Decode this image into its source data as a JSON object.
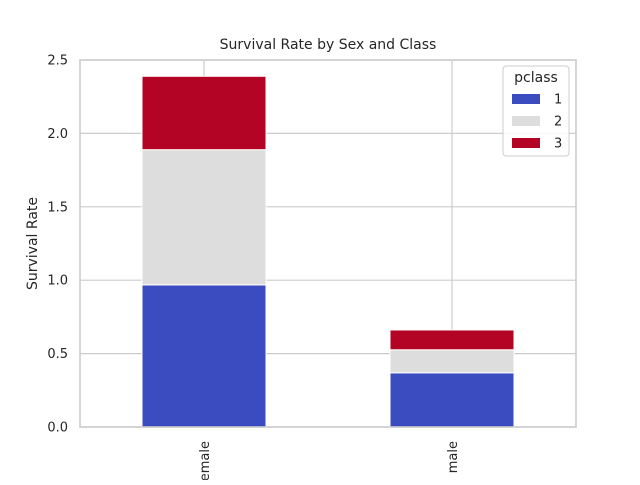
{
  "chart_data": {
    "type": "bar",
    "stacked": true,
    "title": "Survival Rate by Sex and Class",
    "xlabel": "",
    "ylabel": "Survival Rate",
    "categories": [
      "female",
      "male"
    ],
    "series": [
      {
        "name": "1",
        "color": "#3b4cc0",
        "values": [
          0.968,
          0.369
        ]
      },
      {
        "name": "2",
        "color": "#dddddd",
        "values": [
          0.921,
          0.157
        ]
      },
      {
        "name": "3",
        "color": "#b40426",
        "values": [
          0.5,
          0.135
        ]
      }
    ],
    "ylim": [
      0,
      2.5
    ],
    "yticks": [
      "0.0",
      "0.5",
      "1.0",
      "1.5",
      "2.0",
      "2.5"
    ],
    "grid": true,
    "legend": {
      "title": "pclass",
      "placement": "top-right"
    }
  }
}
